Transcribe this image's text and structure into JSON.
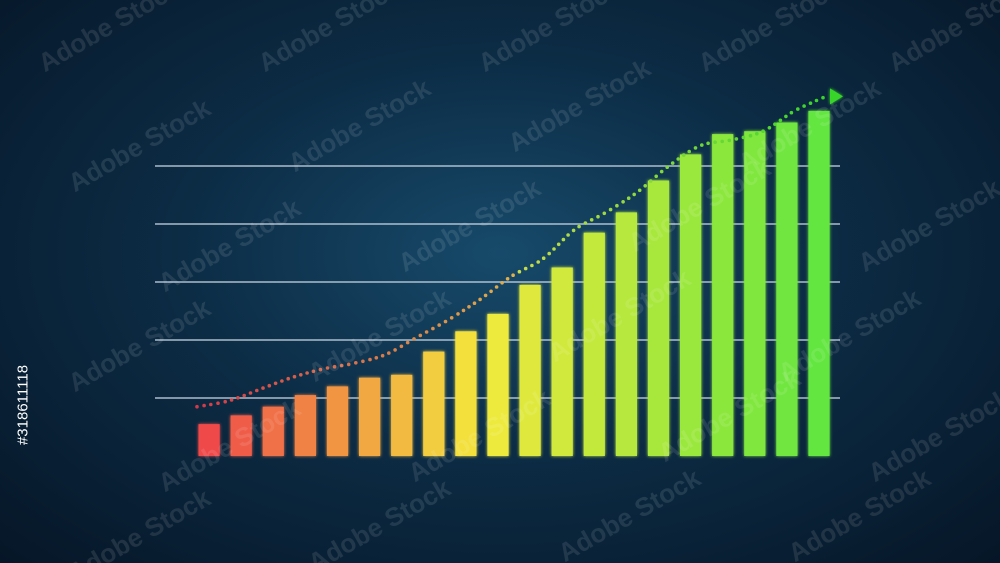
{
  "chart_data": {
    "type": "bar",
    "title": "",
    "xlabel": "",
    "ylabel": "",
    "ylim": [
      0,
      6
    ],
    "grid": true,
    "values": [
      0.55,
      0.7,
      0.85,
      1.05,
      1.2,
      1.35,
      1.4,
      1.8,
      2.15,
      2.45,
      2.95,
      3.25,
      3.85,
      4.2,
      4.75,
      5.2,
      5.55,
      5.6,
      5.75,
      5.95
    ],
    "trend": {
      "style": "dotted",
      "values": [
        0.85,
        0.95,
        1.15,
        1.35,
        1.5,
        1.6,
        1.75,
        2.05,
        2.35,
        2.7,
        3.1,
        3.4,
        3.9,
        4.2,
        4.55,
        5.0,
        5.35,
        5.45,
        5.6,
        5.95,
        6.2
      ],
      "arrow": true
    },
    "colors": {
      "low": "#ef4a4a",
      "mid": "#f3ea3c",
      "high": "#63e63f",
      "axis": "#ffffff",
      "grid": "#c9d6e3",
      "trend_end": "#39d42a"
    }
  },
  "watermark": {
    "text": "Adobe Stock",
    "id": "#318611118"
  }
}
